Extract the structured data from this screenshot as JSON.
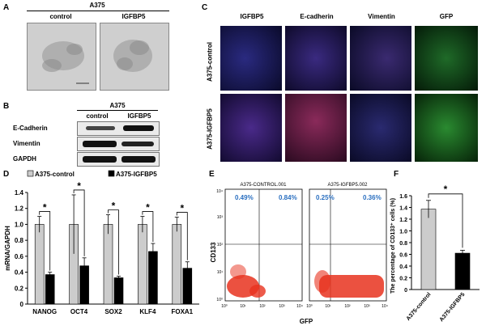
{
  "panels": {
    "a": "A",
    "b": "B",
    "c": "C",
    "d": "D",
    "e": "E",
    "f": "F"
  },
  "panel_a": {
    "cell_line": "A375",
    "conditions": [
      "control",
      "IGFBP5"
    ],
    "micro_bg": "#cfcfcf"
  },
  "panel_b": {
    "cell_line": "A375",
    "conditions": [
      "control",
      "IGFBP5"
    ],
    "rows": [
      "E-Cadherin",
      "Vimentin",
      "GAPDH"
    ]
  },
  "panel_c": {
    "columns": [
      "IGFBP5",
      "E-cadherin",
      "Vimentin",
      "GFP"
    ],
    "rows": [
      "A375-control",
      "A375-IGFBP5"
    ],
    "colors": {
      "blue": "#1a1a70",
      "red": "#a0304a",
      "green": "#2f9e3a"
    }
  },
  "panel_e": {
    "plots": [
      {
        "title": "A375-CONTROL.001",
        "ul": "0.49%",
        "ur": "0.84%"
      },
      {
        "title": "A375-IGFBP5.002",
        "ul": "0.25%",
        "ur": "0.36%"
      }
    ],
    "xlabel": "GFP",
    "ylabel": "CD133",
    "ticks": [
      "10⁰",
      "10¹",
      "10²",
      "10³",
      "10⁴"
    ],
    "dot_color": "#e8321e",
    "pct_color": "#2a6fc0"
  },
  "chart_data": [
    {
      "type": "bar",
      "panel": "D",
      "categories": [
        "NANOG",
        "OCT4",
        "SOX2",
        "KLF4",
        "FOXA1"
      ],
      "series": [
        {
          "name": "A375-control",
          "values": [
            1.0,
            1.0,
            1.0,
            1.0,
            1.0
          ],
          "errors": [
            0.1,
            0.37,
            0.12,
            0.1,
            0.09
          ],
          "color": "#cccccc"
        },
        {
          "name": "A375-IGFBP5",
          "values": [
            0.37,
            0.48,
            0.33,
            0.66,
            0.45
          ],
          "errors": [
            0.03,
            0.1,
            0.02,
            0.1,
            0.08
          ],
          "color": "#000000"
        }
      ],
      "ylabel": "mRNA/GAPDH",
      "ylim": [
        0,
        1.4
      ],
      "yticks": [
        "0",
        "0.2",
        "0.4",
        "0.6",
        "0.8",
        "1.0",
        "1.2",
        "1.4"
      ],
      "significance": [
        "*",
        "*",
        "*",
        "*",
        "*"
      ],
      "legend": "top"
    },
    {
      "type": "bar",
      "panel": "F",
      "categories": [
        "A375-control",
        "A375-IGFBP5"
      ],
      "values": [
        1.37,
        0.62
      ],
      "errors": [
        0.15,
        0.05
      ],
      "colors": [
        "#cccccc",
        "#000000"
      ],
      "ylabel": "The percentage of CD133⁺ cells (%)",
      "ylim": [
        0,
        1.6
      ],
      "yticks": [
        "0",
        "0.2",
        "0.4",
        "0.6",
        "0.8",
        "1.0",
        "1.2",
        "1.4",
        "1.6"
      ],
      "significance": "*"
    }
  ]
}
